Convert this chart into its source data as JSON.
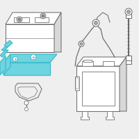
{
  "bg_color": "#efefef",
  "outline_color": "#666666",
  "highlight_color": "#3bbccc",
  "highlight_fill": "#6ed4e0",
  "line_width": 0.7,
  "face_white": "#ffffff",
  "face_gray": "#d8d8d8",
  "face_light": "#f0f0f0"
}
